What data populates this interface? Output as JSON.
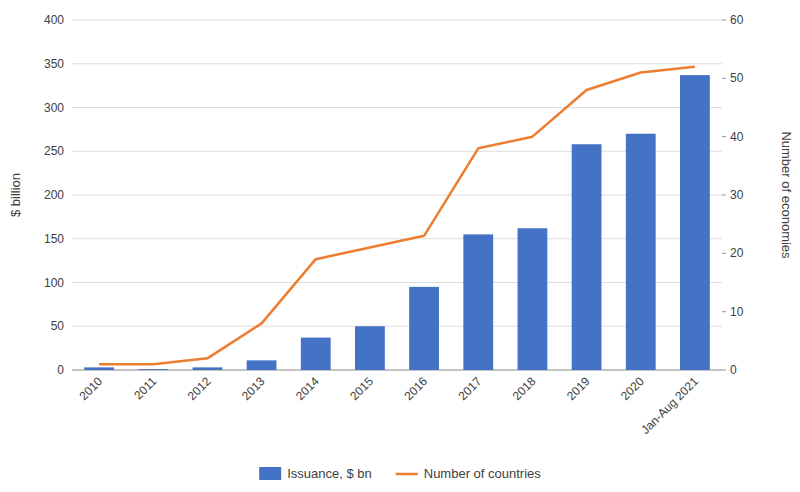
{
  "chart_data": {
    "type": "bar",
    "categories": [
      "2010",
      "2011",
      "2012",
      "2013",
      "2014",
      "2015",
      "2016",
      "2017",
      "2018",
      "2019",
      "2020",
      "Jan-Aug 2021"
    ],
    "series": [
      {
        "name": "Issuance, $ bn",
        "type": "bar",
        "color": "#4472C4",
        "values": [
          3,
          1,
          3,
          11,
          37,
          50,
          95,
          155,
          162,
          258,
          270,
          337
        ]
      },
      {
        "name": "Number of countries",
        "type": "line",
        "color": "#ED7D31",
        "axis": "y2",
        "values": [
          1,
          1,
          2,
          8,
          19,
          21,
          23,
          38,
          40,
          48,
          51,
          52
        ]
      }
    ],
    "ylabel": "$ billion",
    "y2label": "Number of economies",
    "ylim": [
      0,
      400
    ],
    "yticks": [
      0,
      50,
      100,
      150,
      200,
      250,
      300,
      350,
      400
    ],
    "y2lim": [
      0,
      60
    ],
    "y2ticks": [
      0,
      10,
      20,
      30,
      40,
      50,
      60
    ],
    "grid": true,
    "legend": "bottom"
  }
}
